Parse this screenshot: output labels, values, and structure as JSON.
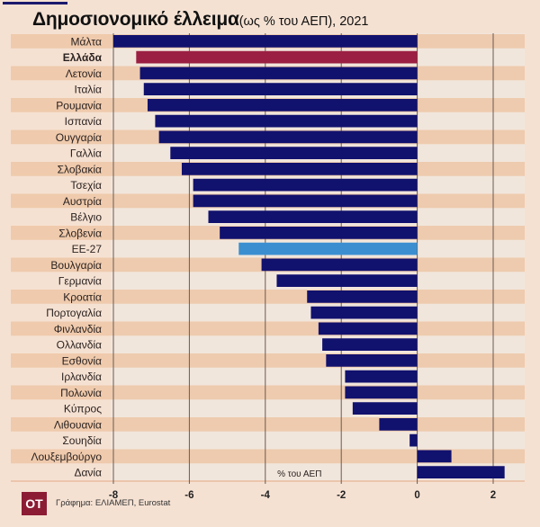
{
  "title": {
    "main": "Δημοσιονομικό έλλειμα",
    "sub": "(ως % του ΑΕΠ), 2021"
  },
  "logo": "ΟΤ",
  "source": "Γράφημα: ΕΛΙΑΜΕΠ, Eurostat",
  "colors": {
    "bar": "#11116e",
    "highlight": "#9b1f42",
    "eu": "#3b8fd0",
    "stripe": "#edc6a6",
    "background": "#f5e1d2"
  },
  "chart_data": {
    "type": "bar",
    "orientation": "horizontal",
    "title": "Δημοσιονομικό έλλειμα (ως % του ΑΕΠ), 2021",
    "xlabel": "% του ΑΕΠ",
    "ylabel": "",
    "xlim": [
      -8,
      2.8
    ],
    "xticks": [
      -8,
      -6,
      -4,
      -2,
      0,
      2
    ],
    "grid": true,
    "highlight": "Ελλάδα",
    "aggregate": "ΕΕ-27",
    "categories": [
      "Μάλτα",
      "Ελλάδα",
      "Λετονία",
      "Ιταλία",
      "Ρουμανία",
      "Ισπανία",
      "Ουγγαρία",
      "Γαλλία",
      "Σλοβακία",
      "Τσεχία",
      "Αυστρία",
      "Βέλγιο",
      "Σλοβενία",
      "ΕΕ-27",
      "Βουλγαρία",
      "Γερμανία",
      "Κροατία",
      "Πορτογαλία",
      "Φινλανδία",
      "Ολλανδία",
      "Εσθονία",
      "Ιρλανδία",
      "Πολωνία",
      "Κύπρος",
      "Λιθουανία",
      "Σουηδία",
      "Λουξεμβούργο",
      "Δανία"
    ],
    "values": [
      -8.0,
      -7.4,
      -7.3,
      -7.2,
      -7.1,
      -6.9,
      -6.8,
      -6.5,
      -6.2,
      -5.9,
      -5.9,
      -5.5,
      -5.2,
      -4.7,
      -4.1,
      -3.7,
      -2.9,
      -2.8,
      -2.6,
      -2.5,
      -2.4,
      -1.9,
      -1.9,
      -1.7,
      -1.0,
      -0.2,
      0.9,
      2.3
    ]
  }
}
